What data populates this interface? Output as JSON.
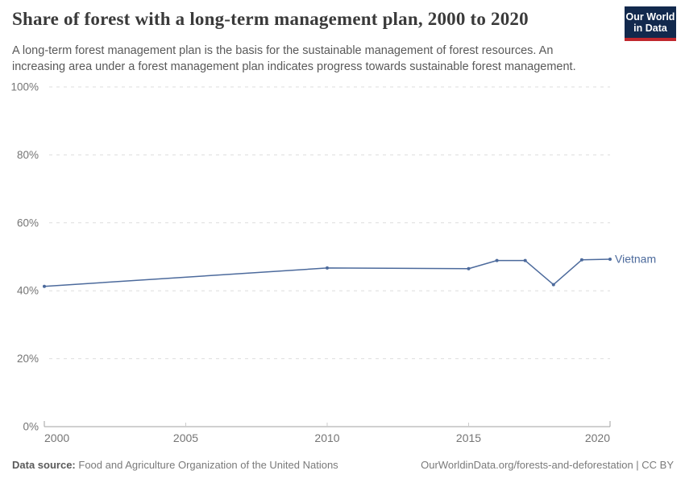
{
  "header": {
    "logo": {
      "line1": "Our World",
      "line2": "in Data",
      "bg_color": "#12294D",
      "accent_color": "#C0272D"
    }
  },
  "chart_data": {
    "type": "line",
    "title": "Share of forest with a long-term management plan, 2000 to 2020",
    "subtitle": "A long-term forest management plan is the basis for the sustainable management of forest resources. An increasing area under a forest management plan indicates progress towards sustainable forest management.",
    "xlabel": "",
    "ylabel": "",
    "xlim": [
      2000,
      2020
    ],
    "ylim": [
      0,
      100
    ],
    "x_ticks": [
      2000,
      2005,
      2010,
      2015,
      2020
    ],
    "y_tick_values": [
      0,
      20,
      40,
      60,
      80,
      100
    ],
    "y_tick_labels": [
      "0%",
      "20%",
      "40%",
      "60%",
      "80%",
      "100%"
    ],
    "grid": "horizontal-dashed",
    "legend_position": "end-of-line-label",
    "series": [
      {
        "name": "Vietnam",
        "color": "#4C6A9C",
        "points": [
          {
            "x": 2000,
            "y": 41.3
          },
          {
            "x": 2010,
            "y": 46.7
          },
          {
            "x": 2015,
            "y": 46.5
          },
          {
            "x": 2016,
            "y": 48.9
          },
          {
            "x": 2017,
            "y": 48.9
          },
          {
            "x": 2018,
            "y": 41.8
          },
          {
            "x": 2019,
            "y": 49.1
          },
          {
            "x": 2020,
            "y": 49.3
          }
        ]
      }
    ],
    "colors": {
      "grid": "#dedede",
      "axis": "#a0a0a0",
      "inner_tick": "#cccccc",
      "tick_text": "#757575"
    }
  },
  "footer": {
    "source_label": "Data source:",
    "source_text": "Food and Agriculture Organization of the United Nations",
    "attribution": "OurWorldinData.org/forests-and-deforestation | CC BY"
  }
}
